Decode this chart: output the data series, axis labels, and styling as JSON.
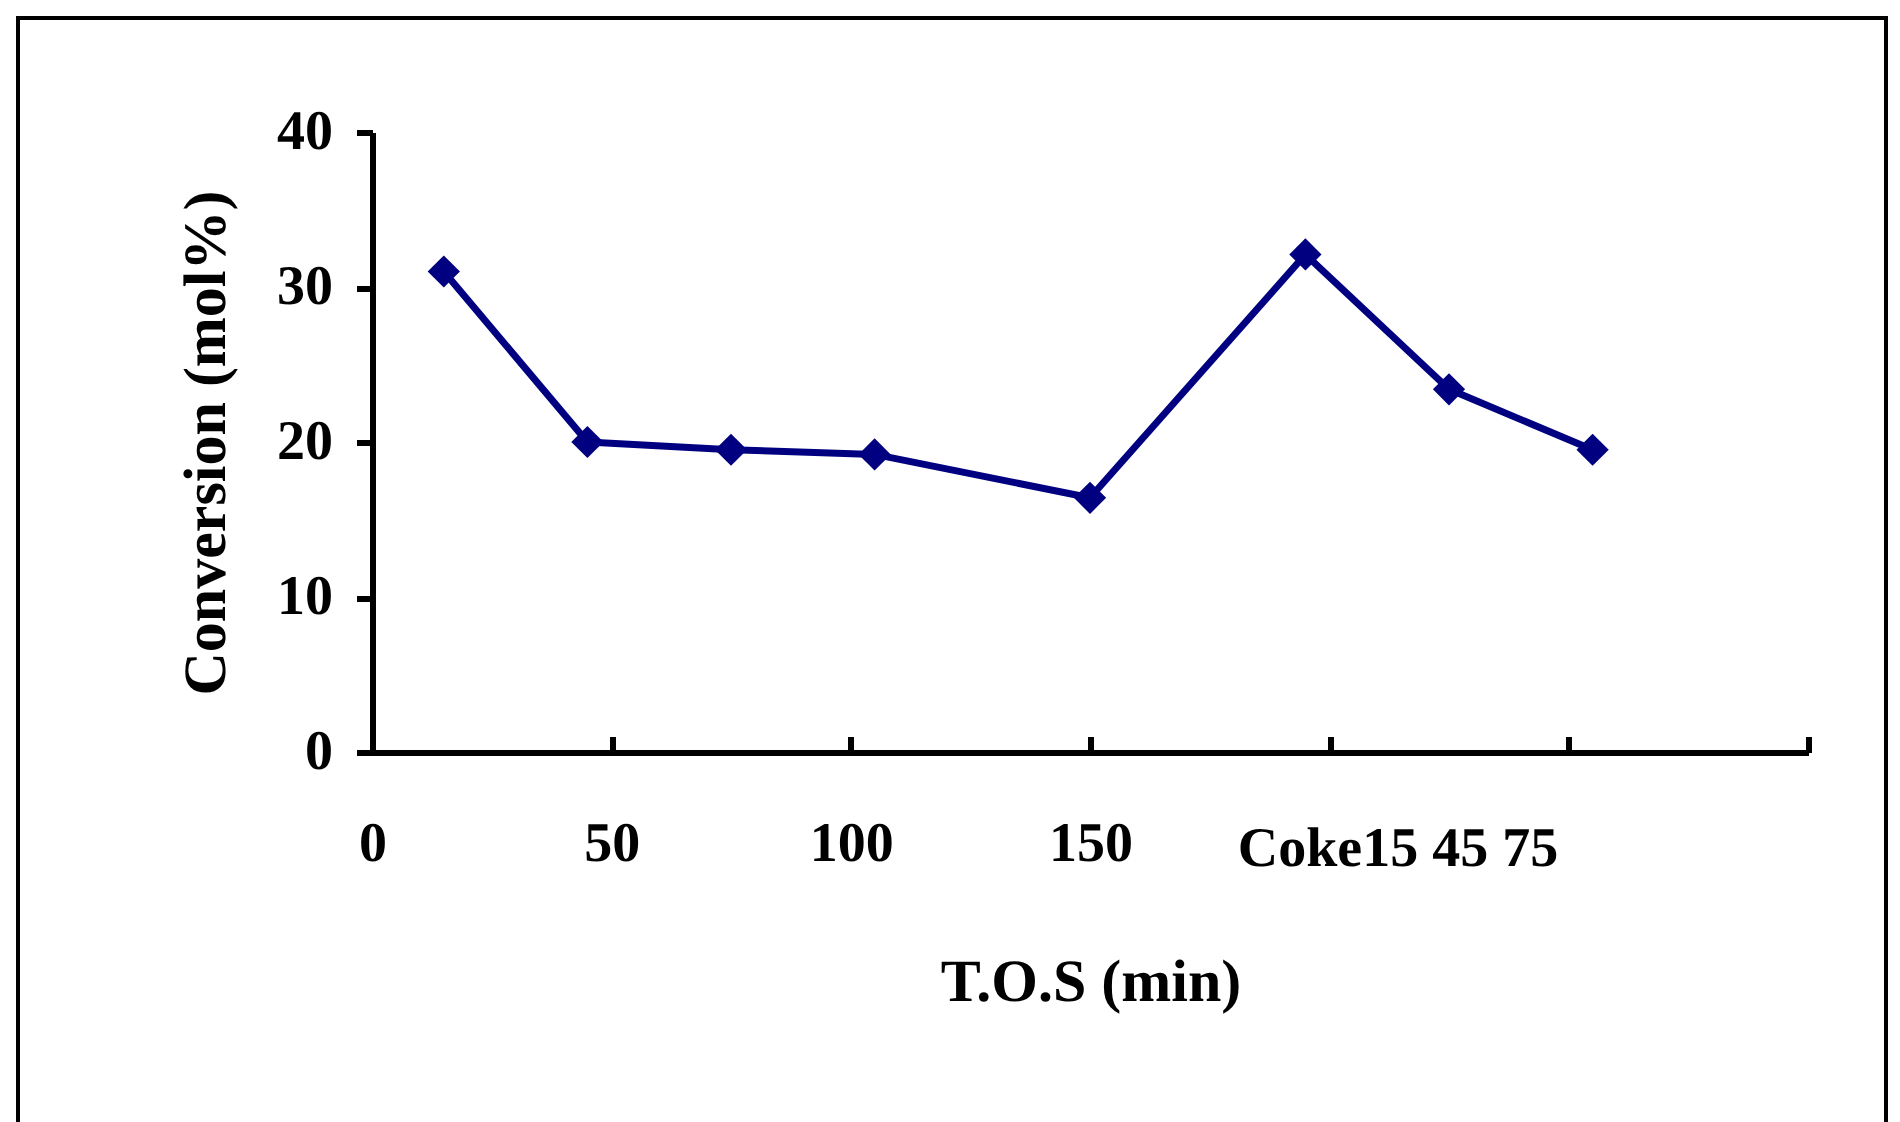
{
  "chart_data": {
    "type": "line",
    "xlabel": "T.O.S (min)",
    "ylabel": "Conversion (mol%)",
    "x": [
      15,
      45,
      75,
      105,
      150,
      195,
      225,
      255
    ],
    "series": [
      {
        "color": "#000080",
        "values": [
          31.0,
          20.0,
          19.5,
          19.2,
          16.4,
          32.1,
          23.4,
          19.5
        ]
      }
    ],
    "xlim": [
      0,
      300
    ],
    "xticks": [
      0,
      50,
      100,
      150,
      {
        "value": 200,
        "label": null
      },
      {
        "value": 250,
        "label": null
      },
      {
        "value": 300,
        "label": null
      }
    ],
    "ylim": [
      0,
      40
    ],
    "yticks": [
      0,
      10,
      20,
      30,
      40
    ],
    "marker": "diamond",
    "line_style": "solid",
    "annotations": [
      "Coke15 45 75"
    ]
  }
}
